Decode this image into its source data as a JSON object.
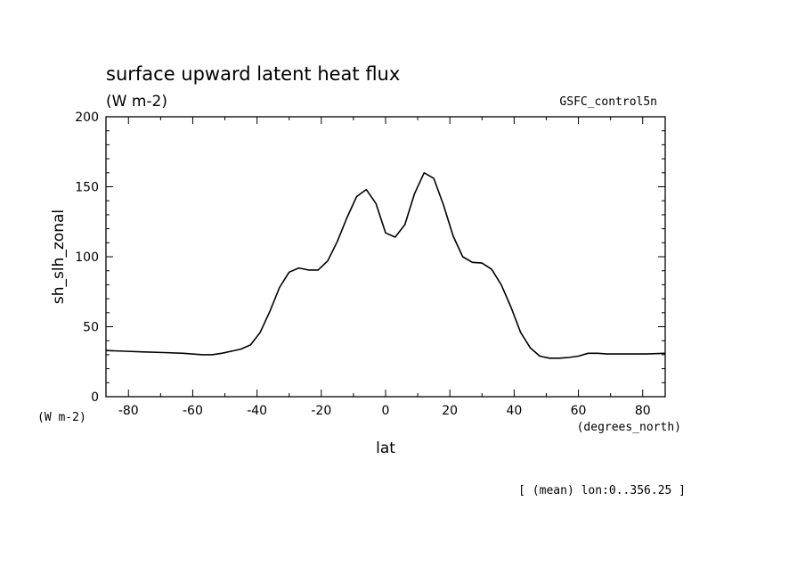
{
  "chart_data": {
    "type": "line",
    "title": "surface upward latent heat flux",
    "units": "(W m-2)",
    "dataset": "GSFC_control5n",
    "ylabel": "sh_slh_zonal",
    "ylabel_units": "(W m-2)",
    "xlabel": "lat",
    "xlabel_units": "(degrees_north)",
    "footnote": "[ (mean) lon:0..356.25 ]",
    "xlim": [
      -87,
      87
    ],
    "ylim": [
      0,
      200
    ],
    "x_ticks": [
      -80,
      -60,
      -40,
      -20,
      0,
      20,
      40,
      60,
      80
    ],
    "x_tick_labels": [
      "-80",
      "-60",
      "-40",
      "-20",
      "0",
      "20",
      "40",
      "60",
      "80"
    ],
    "y_ticks": [
      0,
      50,
      100,
      150,
      200
    ],
    "y_tick_labels": [
      "0",
      "50",
      "100",
      "150",
      "200"
    ],
    "grid": false,
    "line_color": "#000000",
    "series": [
      {
        "x": [
          -87,
          -81,
          -75,
          -69,
          -63,
          -57,
          -54,
          -51,
          -48,
          -45,
          -42,
          -39,
          -36,
          -33,
          -30,
          -27,
          -24,
          -21,
          -18,
          -15,
          -12,
          -9,
          -6,
          -3,
          0,
          3,
          6,
          9,
          12,
          15,
          18,
          21,
          24,
          27,
          30,
          33,
          36,
          39,
          42,
          45,
          48,
          51,
          54,
          57,
          60,
          63,
          66,
          69,
          75,
          81,
          87
        ],
        "y": [
          33,
          32.5,
          32,
          31.5,
          31,
          30,
          30,
          31,
          32.5,
          34,
          37,
          46,
          61,
          78,
          89,
          92,
          90.5,
          90.5,
          97,
          111,
          128,
          143,
          148,
          138,
          117,
          114,
          123,
          145,
          160,
          156,
          137,
          115,
          100,
          96,
          95.5,
          91,
          80,
          64,
          46,
          35,
          29,
          27.5,
          27.5,
          28,
          29,
          31,
          31,
          30.5,
          30.5,
          30.5,
          31
        ]
      }
    ]
  }
}
